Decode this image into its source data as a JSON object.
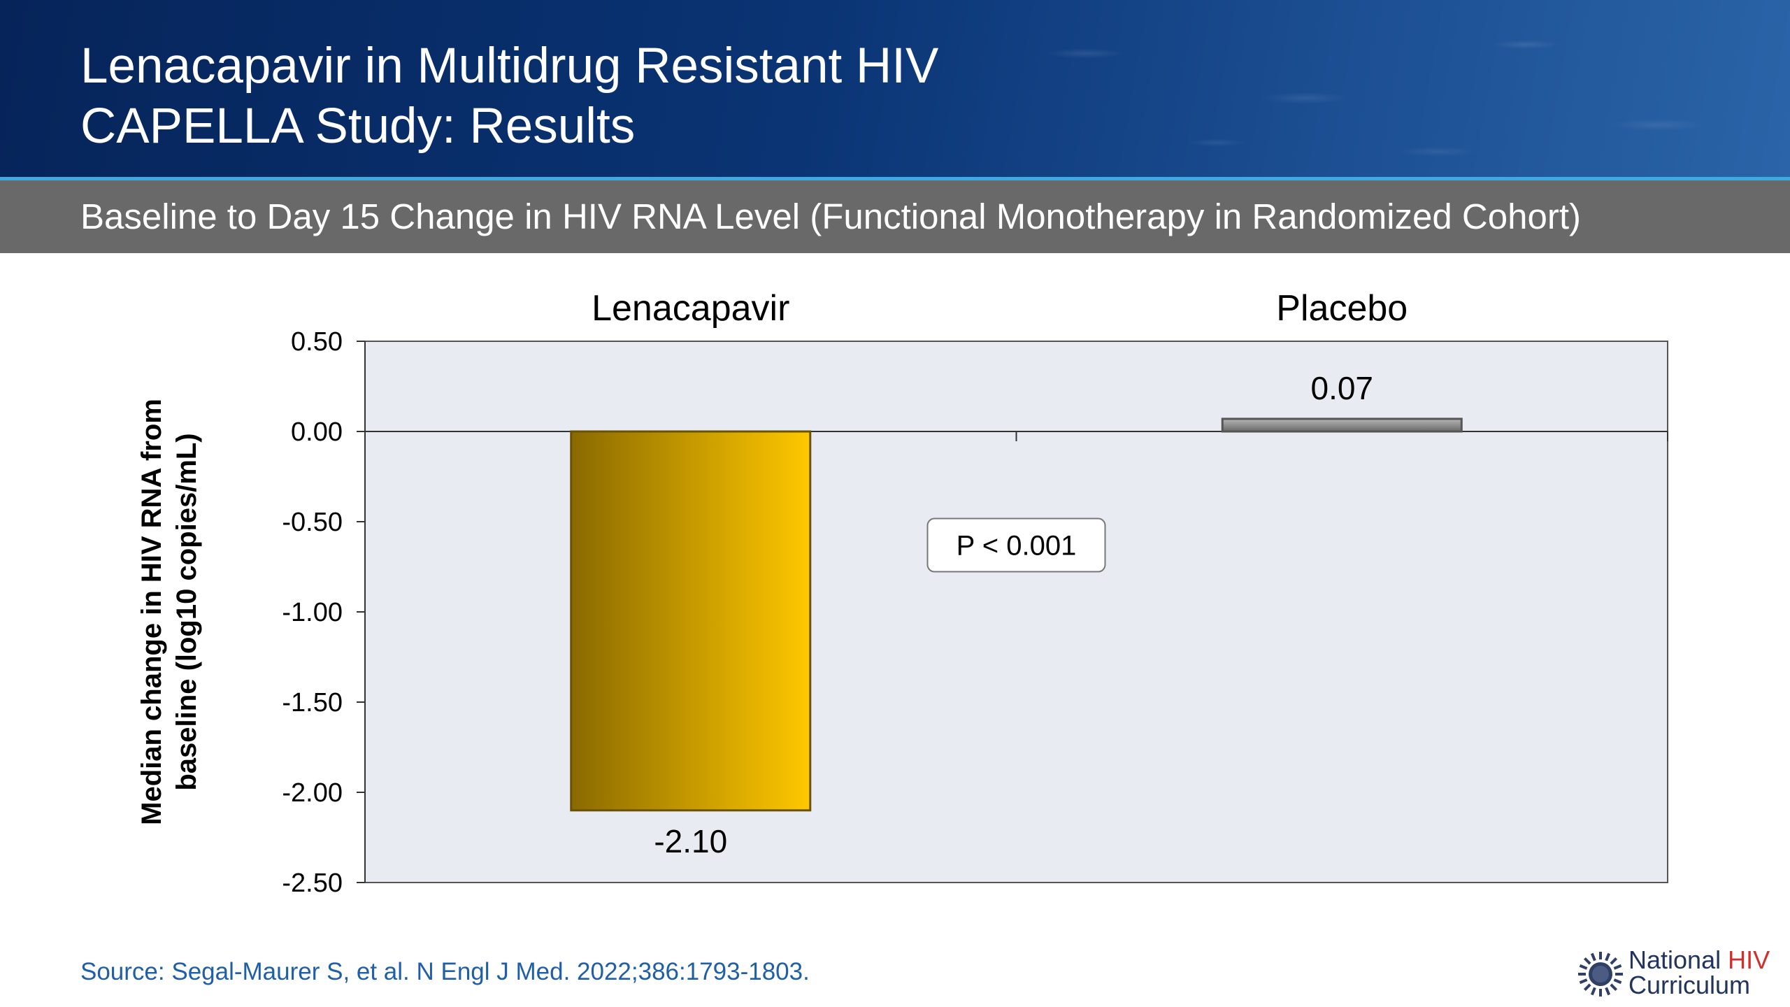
{
  "slide": {
    "title_line1": "Lenacapavir in Multidrug Resistant HIV",
    "title_line2": "CAPELLA Study: Results",
    "subtitle": "Baseline to Day 15 Change in HIV RNA Level (Functional Monotherapy in Randomized Cohort)",
    "source": "Source: Segal-Maurer S, et al. N Engl J Med. 2022;386:1793-1803.",
    "logo": {
      "line1_a": "National ",
      "line1_b": "HIV",
      "line2": "Curriculum"
    }
  },
  "colors": {
    "header_dark": "#06245a",
    "header_line": "#3fa9e0",
    "subtitle_bar": "#696969",
    "plot_bg": "#e8ebf2",
    "lenacapavir_dark": "#8a6a00",
    "lenacapavir_light": "#ffc800",
    "placebo": "#8c8c8c",
    "source_text": "#1f5fa8",
    "logo_red": "#d22e2e"
  },
  "chart_data": {
    "type": "bar",
    "categories": [
      "Lenacapavir",
      "Placebo"
    ],
    "values": [
      -2.1,
      0.07
    ],
    "value_labels": [
      "-2.10",
      "0.07"
    ],
    "ylabel_line1": "Median change in HIV RNA from",
    "ylabel_line2": "baseline (log10 copies/mL)",
    "xlabel": "",
    "ylim": [
      -2.5,
      0.5
    ],
    "yticks": [
      0.5,
      0.0,
      -0.5,
      -1.0,
      -1.5,
      -2.0,
      -2.5
    ],
    "ytick_labels": [
      "0.50",
      "0.00",
      "-0.50",
      "-1.00",
      "-1.50",
      "-2.00",
      "-2.50"
    ],
    "category_label_position": "top",
    "annotation": "P < 0.001",
    "grid": false
  }
}
